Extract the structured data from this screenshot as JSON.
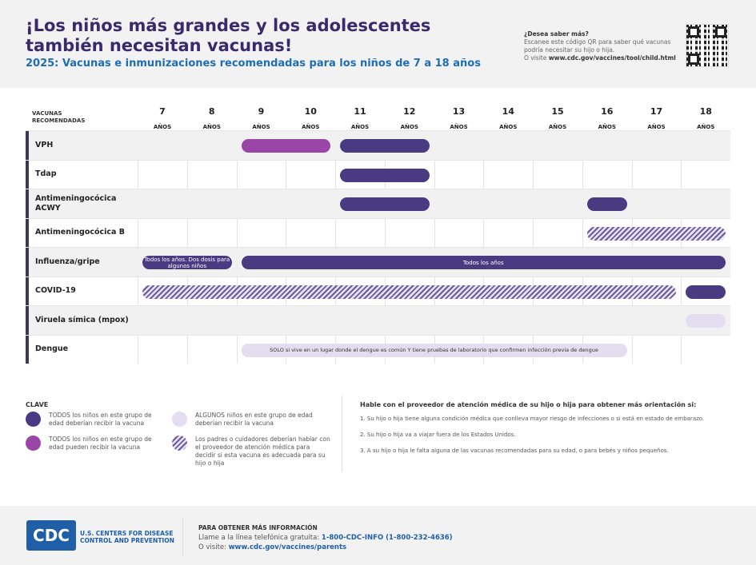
{
  "header": {
    "title": "¡Los niños más grandes y los adolescentes también necesitan vacunas!",
    "subtitle": "2025: Vacunas e inmunizaciones recomendadas para los niños de 7 a 18 años",
    "more_title": "¿Desea saber más?",
    "more_text": "Escanee este código QR para saber qué vacunas podría necesitar su hijo o hija.",
    "more_visit": "O visite ",
    "more_url": "www.cdc.gov/vaccines/tool/child.html"
  },
  "table": {
    "label_header": "VACUNAS RECOMENDADAS",
    "age_unit": "AÑOS",
    "ages": [
      "7",
      "8",
      "9",
      "10",
      "11",
      "12",
      "13",
      "14",
      "15",
      "16",
      "17",
      "18"
    ],
    "rows": [
      {
        "name": "VPH",
        "bars": [
          {
            "from": 9,
            "to": 10,
            "type": "mag"
          },
          {
            "from": 11,
            "to": 12,
            "type": "dark"
          }
        ]
      },
      {
        "name": "Tdap",
        "bars": [
          {
            "from": 11,
            "to": 12,
            "type": "dark"
          }
        ]
      },
      {
        "name": "Antimeningocócica ACWY",
        "bars": [
          {
            "from": 11,
            "to": 12,
            "type": "dark"
          },
          {
            "from": 16,
            "to": 16,
            "type": "dark"
          }
        ]
      },
      {
        "name": "Antimeningocócica B",
        "bars": [
          {
            "from": 16,
            "to": 18,
            "type": "hatch"
          }
        ]
      },
      {
        "name": "Influenza/gripe",
        "bars": [
          {
            "from": 7,
            "to": 8,
            "type": "dark",
            "text": "Todos los años. Dos dosis para algunos niños"
          },
          {
            "from": 9,
            "to": 18,
            "type": "dark",
            "text": "Todos los años"
          }
        ]
      },
      {
        "name": "COVID-19",
        "bars": [
          {
            "from": 7,
            "to": 17,
            "type": "hatch"
          },
          {
            "from": 18,
            "to": 18,
            "type": "dark"
          }
        ]
      },
      {
        "name": "Viruela símica (mpox)",
        "bars": [
          {
            "from": 18,
            "to": 18,
            "type": "light"
          }
        ]
      },
      {
        "name": "Dengue",
        "bars": [
          {
            "from": 9,
            "to": 16,
            "type": "light",
            "text": "SOLO si vive en un lugar donde el dengue es común Y tiene pruebas de laboratorio que confirmen infección previa de dengue"
          }
        ]
      }
    ]
  },
  "colors": {
    "dark": "#4a3a82",
    "mag": "#9a46a6",
    "light": "#e4dcef",
    "title": "#3a2a6b",
    "accent": "#1f6db5"
  },
  "key": {
    "title": "CLAVE",
    "items": [
      {
        "type": "dark",
        "text": "TODOS los niños en este grupo de edad deberían recibir la vacuna"
      },
      {
        "type": "mag",
        "text": "TODOS los niños en este grupo de edad pueden recibir la vacuna"
      },
      {
        "type": "light",
        "text": "ALGUNOS niños en este grupo de edad deberían recibir la vacuna"
      },
      {
        "type": "hatch",
        "text": "Los padres o cuidadores deberían hablar con el proveedor de atención médica para decidir si esta vacuna es adecuada para su hijo o hija"
      }
    ]
  },
  "advice": {
    "title": "Hable con el proveedor de atención médica de su hijo o hija para obtener más orientación si:",
    "items": [
      "1. Su hijo o hija tiene alguna condición médica que conlleva mayor riesgo de infecciones o si está en estado de embarazo.",
      "2. Su hijo o hija va a viajar fuera de los Estados Unidos.",
      "3. A su hijo o hija le falta alguna de las vacunas recomendadas para su edad, o para bebés y niños pequeños."
    ]
  },
  "footer": {
    "logo": "CDC",
    "org": "U.S. CENTERS FOR DISEASE CONTROL AND PREVENTION",
    "info_title": "PARA OBTENER MÁS INFORMACIÓN",
    "call": "Llame a la línea telefónica gratuita: ",
    "phone": "1-800-CDC-INFO (1-800-232-4636)",
    "visit": "O visite: ",
    "url": "www.cdc.gov/vaccines/parents"
  }
}
